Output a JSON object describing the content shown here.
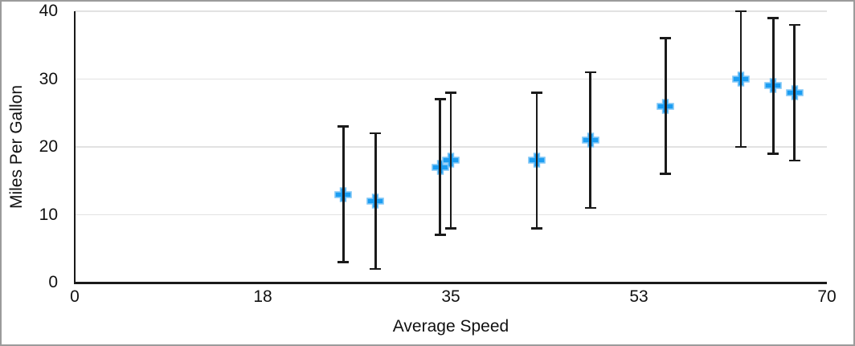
{
  "frame": {
    "border_color": "#9b9b9b",
    "background_color": "#ffffff"
  },
  "chart_data": {
    "type": "scatter",
    "title": "",
    "xlabel": "Average Speed",
    "ylabel": "Miles Per Gallon",
    "xlim": [
      0,
      70
    ],
    "ylim": [
      0,
      40
    ],
    "x_ticks": [
      {
        "value": 0,
        "label": "0"
      },
      {
        "value": 17.5,
        "label": "18"
      },
      {
        "value": 35,
        "label": "35"
      },
      {
        "value": 52.5,
        "label": "53"
      },
      {
        "value": 70,
        "label": "70"
      }
    ],
    "y_ticks": [
      {
        "value": 0,
        "label": "0"
      },
      {
        "value": 10,
        "label": "10"
      },
      {
        "value": 20,
        "label": "20"
      },
      {
        "value": 30,
        "label": "30"
      },
      {
        "value": 40,
        "label": "40"
      }
    ],
    "grid": {
      "horizontal": true,
      "vertical": false,
      "color": "#e2e2e2"
    },
    "legend": "none",
    "axis_color": "#1a1a1a",
    "series": [
      {
        "name": "Miles Per Gallon",
        "marker": "plus-icon",
        "marker_color": "#1b9df2",
        "marker_outline_color": "#7ec6f7",
        "error_bar_type": "fixed",
        "error_bar_value": 10,
        "error_bar_color": "#1a1a1a",
        "points": [
          {
            "x": 25,
            "y": 13,
            "err_low": 3,
            "err_high": 23
          },
          {
            "x": 28,
            "y": 12,
            "err_low": 2,
            "err_high": 22
          },
          {
            "x": 34,
            "y": 17,
            "err_low": 7,
            "err_high": 27
          },
          {
            "x": 35,
            "y": 18,
            "err_low": 8,
            "err_high": 28
          },
          {
            "x": 43,
            "y": 18,
            "err_low": 8,
            "err_high": 28
          },
          {
            "x": 48,
            "y": 21,
            "err_low": 11,
            "err_high": 31
          },
          {
            "x": 55,
            "y": 26,
            "err_low": 16,
            "err_high": 36
          },
          {
            "x": 62,
            "y": 30,
            "err_low": 20,
            "err_high": 40
          },
          {
            "x": 65,
            "y": 29,
            "err_low": 19,
            "err_high": 39
          },
          {
            "x": 67,
            "y": 28,
            "err_low": 18,
            "err_high": 38
          }
        ]
      }
    ]
  }
}
